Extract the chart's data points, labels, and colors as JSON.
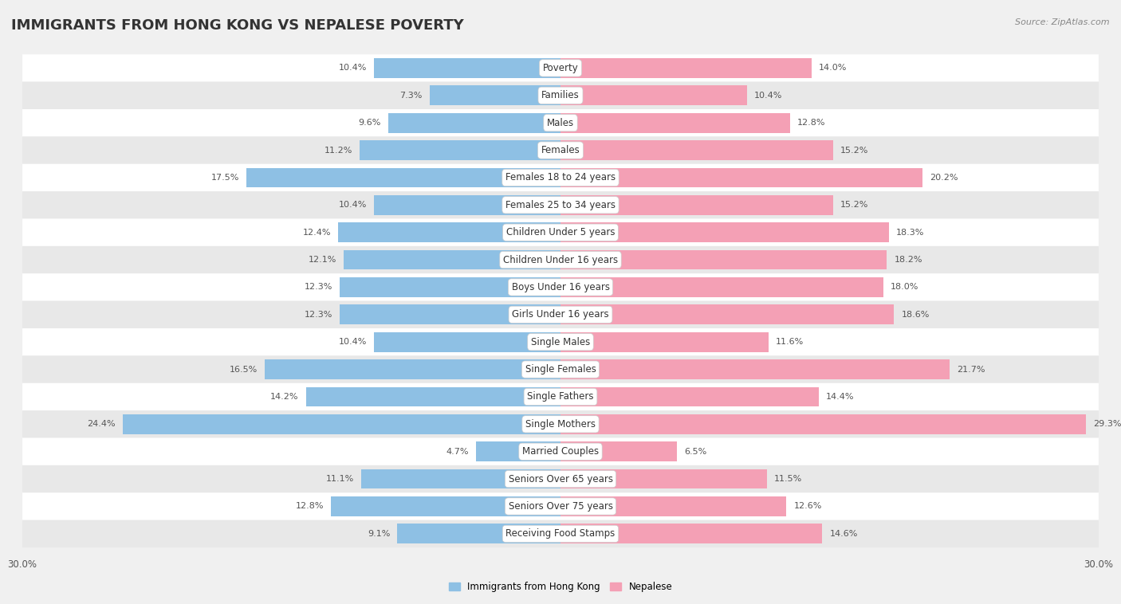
{
  "title": "IMMIGRANTS FROM HONG KONG VS NEPALESE POVERTY",
  "source": "Source: ZipAtlas.com",
  "categories": [
    "Poverty",
    "Families",
    "Males",
    "Females",
    "Females 18 to 24 years",
    "Females 25 to 34 years",
    "Children Under 5 years",
    "Children Under 16 years",
    "Boys Under 16 years",
    "Girls Under 16 years",
    "Single Males",
    "Single Females",
    "Single Fathers",
    "Single Mothers",
    "Married Couples",
    "Seniors Over 65 years",
    "Seniors Over 75 years",
    "Receiving Food Stamps"
  ],
  "hk_values": [
    10.4,
    7.3,
    9.6,
    11.2,
    17.5,
    10.4,
    12.4,
    12.1,
    12.3,
    12.3,
    10.4,
    16.5,
    14.2,
    24.4,
    4.7,
    11.1,
    12.8,
    9.1
  ],
  "nepal_values": [
    14.0,
    10.4,
    12.8,
    15.2,
    20.2,
    15.2,
    18.3,
    18.2,
    18.0,
    18.6,
    11.6,
    21.7,
    14.4,
    29.3,
    6.5,
    11.5,
    12.6,
    14.6
  ],
  "hk_color": "#8ec0e4",
  "nepal_color": "#f4a0b5",
  "hk_label": "Immigrants from Hong Kong",
  "nepal_label": "Nepalese",
  "xlim": 30.0,
  "background_color": "#f0f0f0",
  "row_color_even": "#ffffff",
  "row_color_odd": "#e8e8e8",
  "title_fontsize": 13,
  "label_fontsize": 8.5,
  "value_fontsize": 8.0,
  "cat_fontsize": 8.5
}
